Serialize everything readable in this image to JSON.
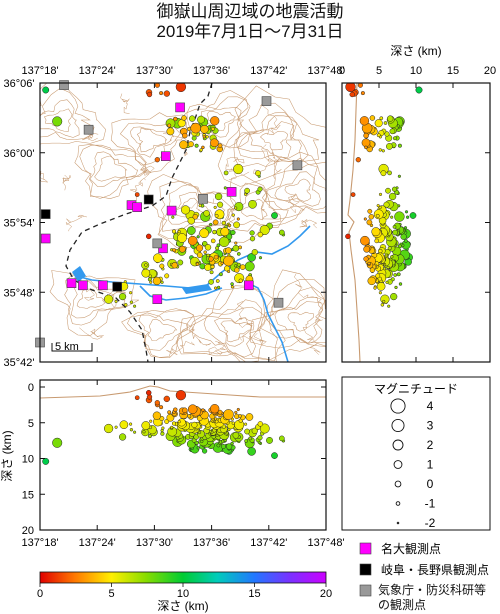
{
  "title": {
    "line1": "御嶽山周辺域の地震活動",
    "line2": "2019年7月1日～7月31日"
  },
  "map": {
    "lon_ticks": [
      "137°18'",
      "137°24'",
      "137°30'",
      "137°36'",
      "137°42'",
      "137°48'"
    ],
    "lat_ticks": [
      "36°06'",
      "36°00'",
      "35°54'",
      "35°48'",
      "35°42'"
    ],
    "scale_label": "5 km"
  },
  "ns_section": {
    "axis_title": "深さ (km)",
    "ticks": [
      "0",
      "5",
      "10",
      "15",
      "20"
    ]
  },
  "ew_section": {
    "axis_title": "深さ (km)",
    "y_ticks": [
      "0",
      "5",
      "10",
      "15",
      "20"
    ],
    "x_ticks": [
      "137°18'",
      "137°24'",
      "137°30'",
      "137°36'",
      "137°42'",
      "137°48'"
    ]
  },
  "magnitude_legend": {
    "title": "マグニチュード",
    "items": [
      {
        "label": "4",
        "size": 4
      },
      {
        "label": "3",
        "size": 3
      },
      {
        "label": "2",
        "size": 2
      },
      {
        "label": "1",
        "size": 1
      },
      {
        "label": "0",
        "size": 0
      },
      {
        "label": "-1",
        "size": -1
      },
      {
        "label": "-2",
        "size": -2
      }
    ]
  },
  "station_legend": [
    {
      "label": "名大観測点",
      "color": "#ff00ff"
    },
    {
      "label": "岐阜・長野県観測点",
      "color": "#000000"
    },
    {
      "label": "気象庁・防災科研等の観測点",
      "color": "#999999"
    }
  ],
  "colorbar": {
    "ticks": [
      "0",
      "5",
      "10",
      "15",
      "20"
    ],
    "label": "深さ (km)"
  },
  "colors": {
    "topo_contour": "#c89a70",
    "river": "#3399ee",
    "boundary": "#222222"
  }
}
